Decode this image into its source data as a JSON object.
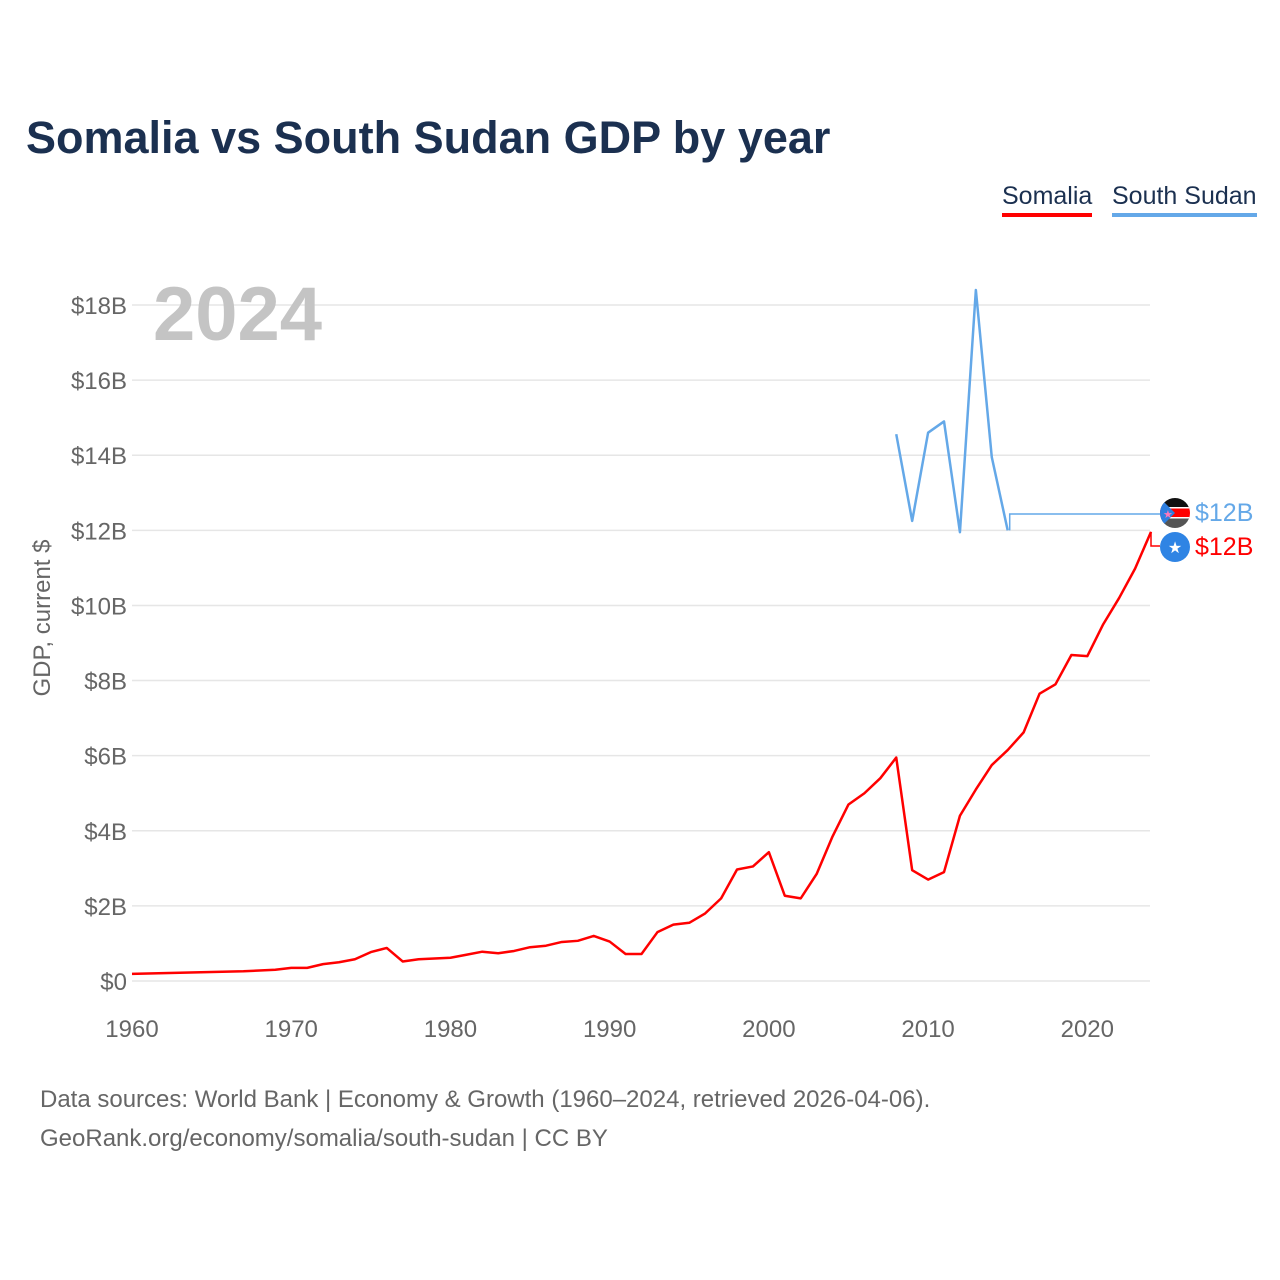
{
  "title": "Somalia vs South Sudan GDP by year",
  "footer": {
    "line1": "Data sources: World Bank | Economy & Growth (1960–2024, retrieved 2026-04-06).",
    "line2": "GeoRank.org/economy/somalia/south-sudan | CC BY"
  },
  "chart_data": {
    "type": "line",
    "title": "Somalia vs South Sudan GDP by year",
    "xlabel": "",
    "ylabel": "GDP, current $",
    "year_label": "2024",
    "xlim": [
      1960,
      2024
    ],
    "ylim": [
      0,
      18
    ],
    "x_ticks": [
      1960,
      1970,
      1980,
      1990,
      2000,
      2010,
      2020
    ],
    "y_ticks": [
      {
        "v": 0,
        "label": "$0"
      },
      {
        "v": 2,
        "label": "$2B"
      },
      {
        "v": 4,
        "label": "$4B"
      },
      {
        "v": 6,
        "label": "$6B"
      },
      {
        "v": 8,
        "label": "$8B"
      },
      {
        "v": 10,
        "label": "$10B"
      },
      {
        "v": 12,
        "label": "$12B"
      },
      {
        "v": 14,
        "label": "$14B"
      },
      {
        "v": 16,
        "label": "$16B"
      },
      {
        "v": 18,
        "label": "$18B"
      }
    ],
    "grid": true,
    "legend": "top-right",
    "series": [
      {
        "name": "Somalia",
        "color": "#ff0000",
        "end_label": "$12B",
        "flag": "somalia-flag",
        "x": [
          1960,
          1961,
          1962,
          1963,
          1964,
          1965,
          1966,
          1967,
          1968,
          1969,
          1970,
          1971,
          1972,
          1973,
          1974,
          1975,
          1976,
          1977,
          1978,
          1979,
          1980,
          1981,
          1982,
          1983,
          1984,
          1985,
          1986,
          1987,
          1988,
          1989,
          1990,
          1991,
          1992,
          1993,
          1994,
          1995,
          1996,
          1997,
          1998,
          1999,
          2000,
          2001,
          2002,
          2003,
          2004,
          2005,
          2006,
          2007,
          2008,
          2009,
          2010,
          2011,
          2012,
          2013,
          2014,
          2015,
          2016,
          2017,
          2018,
          2019,
          2020,
          2021,
          2022,
          2023,
          2024
        ],
        "values": [
          0.19,
          0.2,
          0.21,
          0.22,
          0.23,
          0.24,
          0.25,
          0.26,
          0.28,
          0.3,
          0.35,
          0.35,
          0.45,
          0.5,
          0.58,
          0.77,
          0.88,
          0.52,
          0.58,
          0.6,
          0.62,
          0.7,
          0.78,
          0.74,
          0.8,
          0.9,
          0.94,
          1.04,
          1.07,
          1.2,
          1.05,
          0.72,
          0.72,
          1.3,
          1.5,
          1.55,
          1.8,
          2.2,
          2.97,
          3.05,
          3.43,
          2.27,
          2.2,
          2.85,
          3.85,
          4.7,
          5.0,
          5.4,
          5.95,
          2.95,
          2.7,
          2.9,
          4.4,
          5.1,
          5.75,
          6.15,
          6.62,
          7.65,
          7.9,
          8.68,
          8.65,
          9.5,
          10.2,
          10.98,
          11.96
        ]
      },
      {
        "name": "South Sudan",
        "color": "#64a8e8",
        "end_label": "$12B",
        "flag": "south-sudan-flag",
        "x": [
          2008,
          2009,
          2010,
          2011,
          2012,
          2013,
          2014,
          2015
        ],
        "values": [
          14.56,
          12.25,
          14.6,
          14.9,
          11.95,
          18.4,
          13.95,
          12.0
        ]
      }
    ]
  }
}
